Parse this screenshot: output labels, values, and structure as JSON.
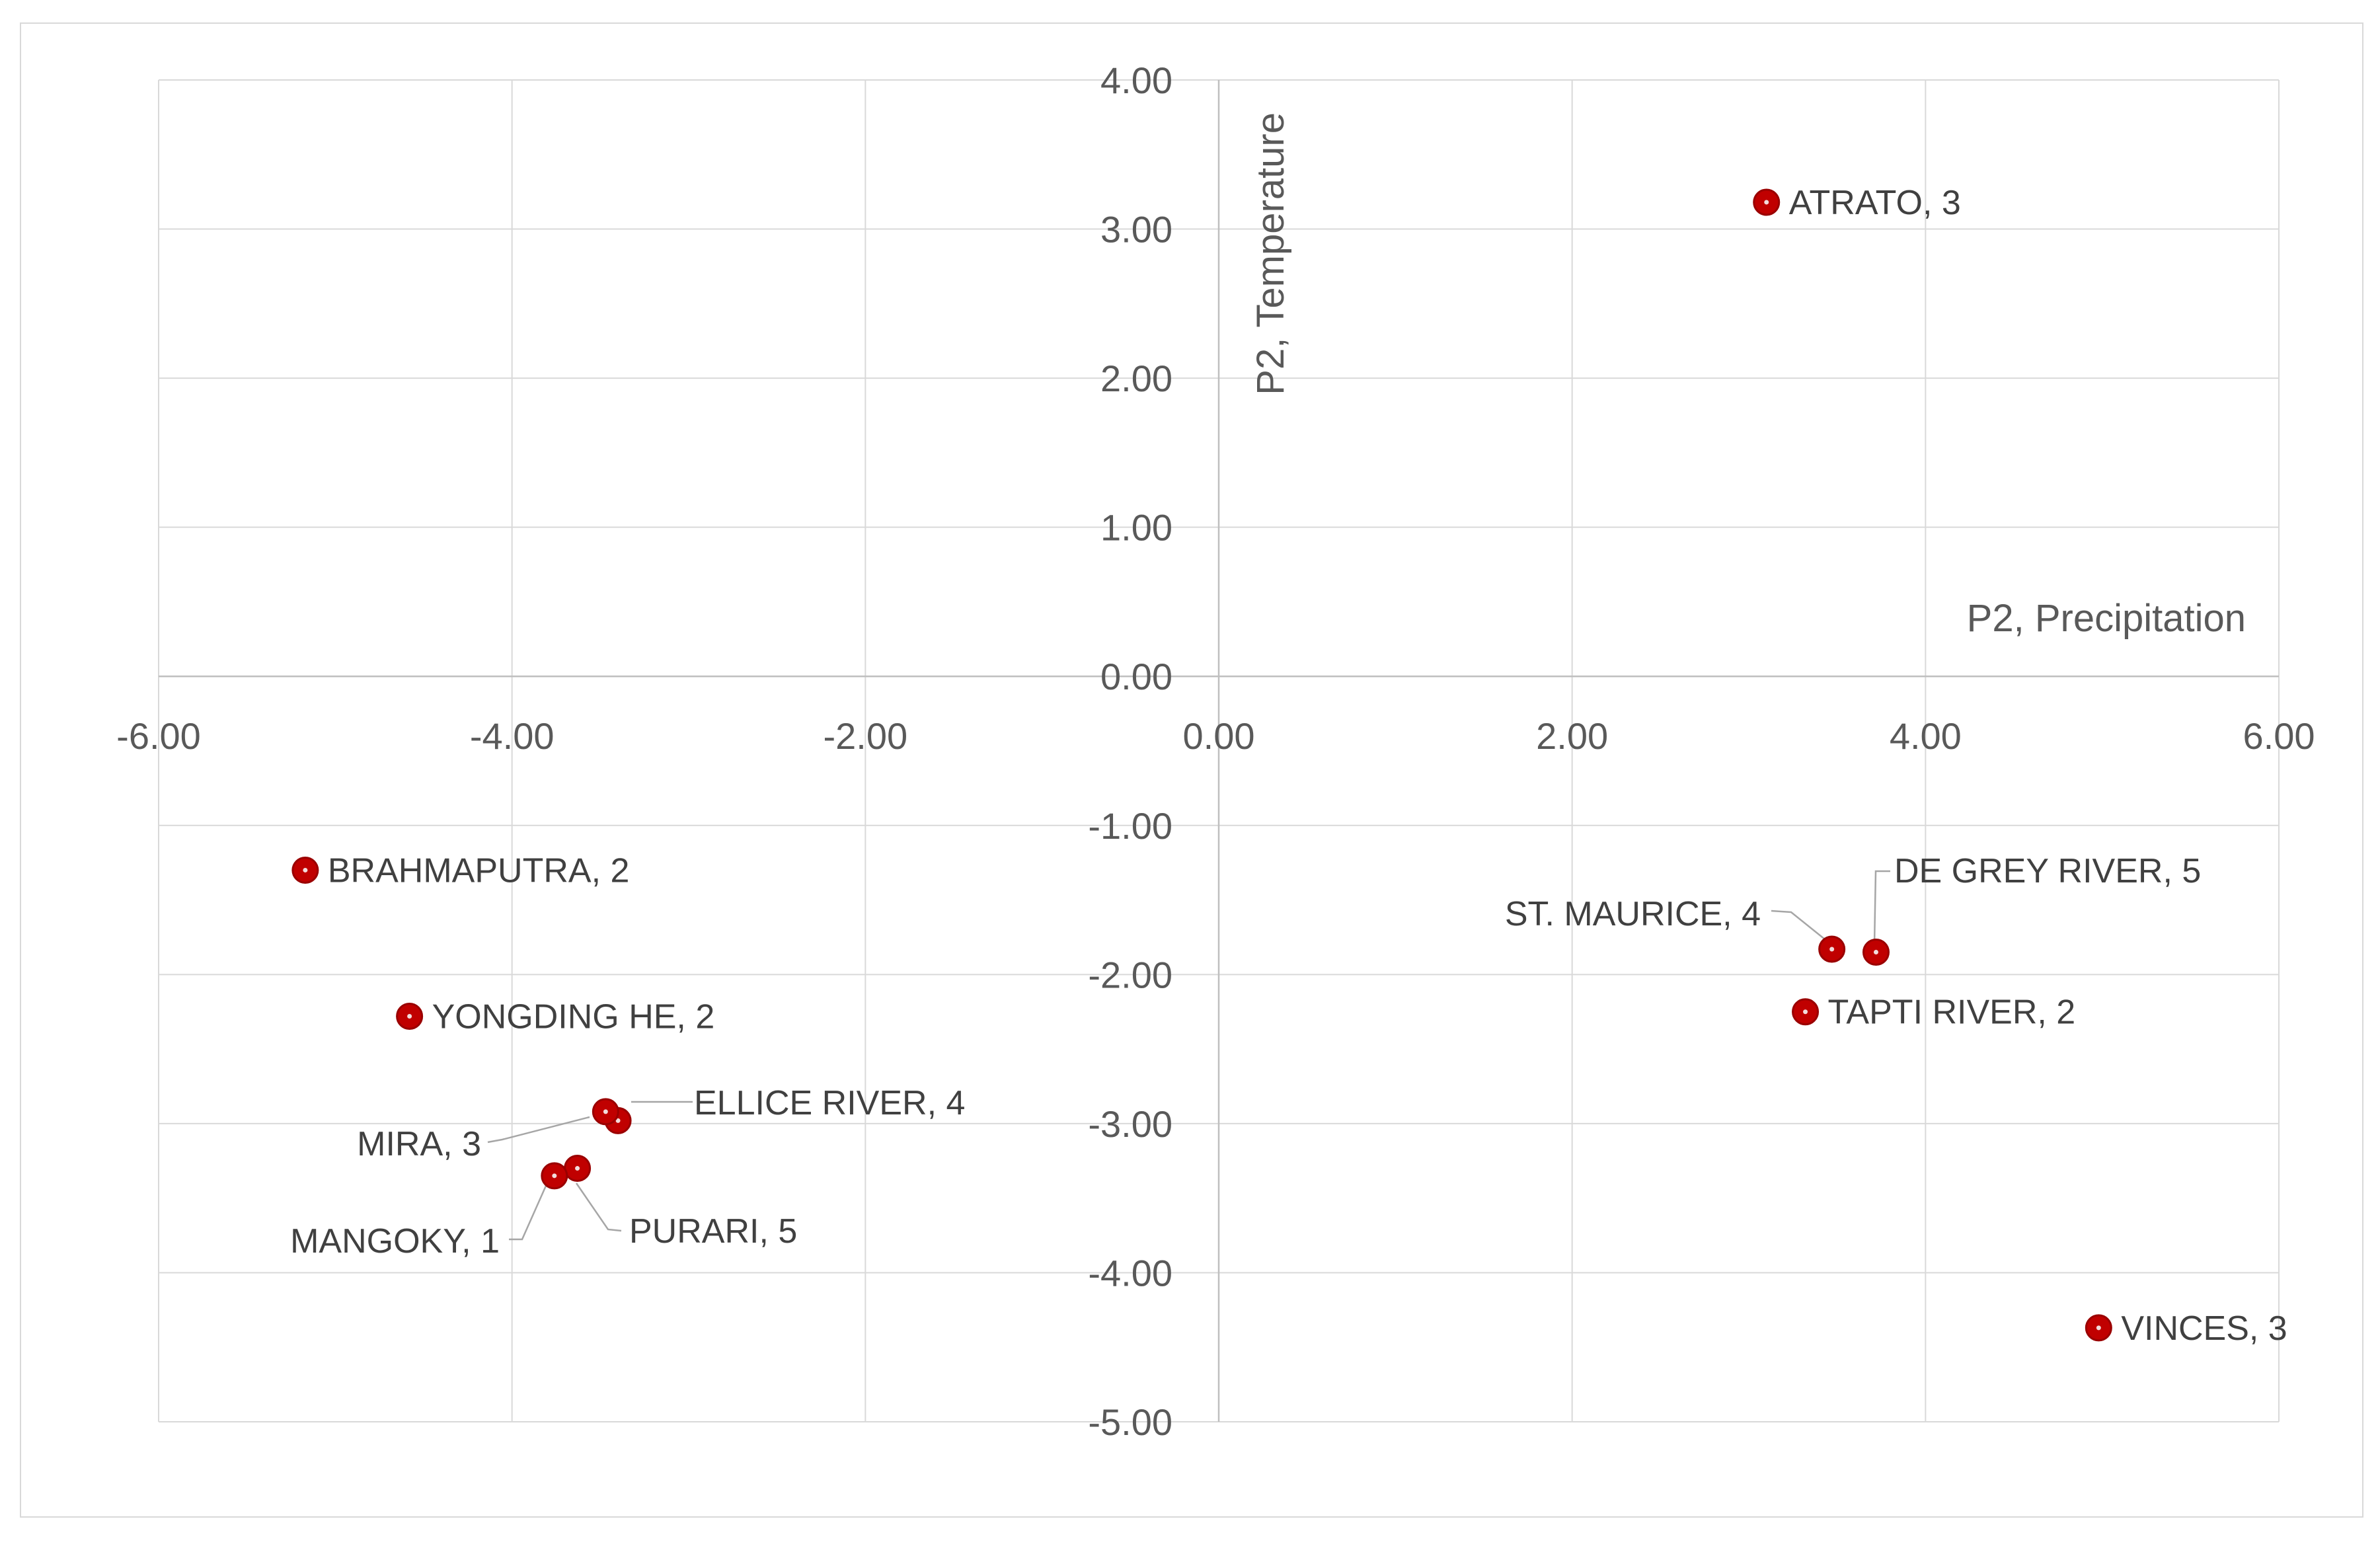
{
  "chart_data": {
    "type": "scatter",
    "title": "",
    "xlabel": "P2, Precipitation",
    "ylabel": "P2, Temperature",
    "xlim": [
      -6,
      6
    ],
    "ylim": [
      -5,
      4
    ],
    "x_ticks": [
      -6,
      -4,
      -2,
      0,
      2,
      4,
      6
    ],
    "y_ticks": [
      4,
      3,
      2,
      1,
      0,
      -1,
      -2,
      -3,
      -4,
      -5
    ],
    "x_tick_labels": [
      "-6.00",
      "-4.00",
      "-2.00",
      "0.00",
      "2.00",
      "4.00",
      "6.00"
    ],
    "y_tick_labels": [
      "4.00",
      "3.00",
      "2.00",
      "1.00",
      "0.00",
      "-1.00",
      "-2.00",
      "-3.00",
      "-4.00",
      "-5.00"
    ],
    "grid": true,
    "legend": "none",
    "marker_color": "#c00000",
    "points": [
      {
        "label": "ATRATO, 3",
        "x": 3.1,
        "y": 3.18
      },
      {
        "label": "BRAHMAPUTRA, 2",
        "x": -5.17,
        "y": -1.3
      },
      {
        "label": "YONGDING HE, 2",
        "x": -4.58,
        "y": -2.28
      },
      {
        "label": "ELLICE RIVER, 4",
        "x": -3.4,
        "y": -2.98
      },
      {
        "label": "MIRA, 3",
        "x": -3.47,
        "y": -2.92
      },
      {
        "label": "PURARI, 5",
        "x": -3.63,
        "y": -3.3
      },
      {
        "label": "MANGOKY, 1",
        "x": -3.76,
        "y": -3.35
      },
      {
        "label": "ST. MAURICE, 4",
        "x": 3.47,
        "y": -1.83
      },
      {
        "label": "DE GREY RIVER, 5",
        "x": 3.72,
        "y": -1.85
      },
      {
        "label": "TAPTI RIVER, 2",
        "x": 3.32,
        "y": -2.25
      },
      {
        "label": "VINCES, 3",
        "x": 4.98,
        "y": -4.37
      }
    ]
  }
}
